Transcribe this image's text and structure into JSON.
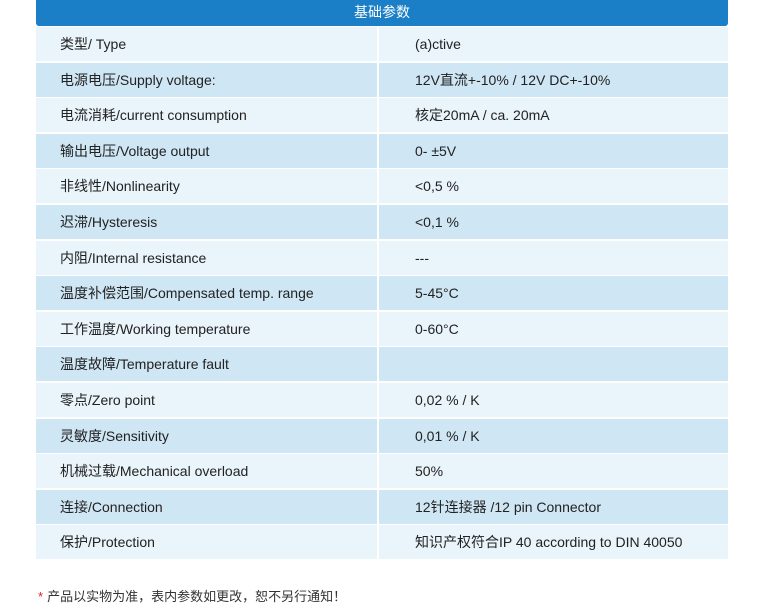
{
  "header": {
    "title": "基础参数"
  },
  "rows": [
    {
      "key": "类型/ Type",
      "value": "(a)ctive"
    },
    {
      "key": "电源电压/Supply voltage:",
      "value": "12V直流+-10%  / 12V DC+-10%"
    },
    {
      "key": "电流消耗/current consumption",
      "value": "核定20mA   / ca. 20mA"
    },
    {
      "key": "输出电压/Voltage output",
      "value": "0- ±5V"
    },
    {
      "key": "非线性/Nonlinearity",
      "value": "<0,5 %"
    },
    {
      "key": "迟滞/Hysteresis",
      "value": "<0,1 %"
    },
    {
      "key": "内阻/Internal resistance",
      "value": "---"
    },
    {
      "key": "温度补偿范围/Compensated temp. range",
      "value": "5-45°C"
    },
    {
      "key": "工作温度/Working temperature",
      "value": "0-60°C"
    },
    {
      "key": "温度故障/Temperature fault",
      "value": ""
    },
    {
      "key": "零点/Zero point",
      "value": "0,02 % / K"
    },
    {
      "key": "灵敏度/Sensitivity",
      "value": "0,01 % / K"
    },
    {
      "key": "机械过载/Mechanical overload",
      "value": "50%"
    },
    {
      "key": "连接/Connection",
      "value": "12针连接器  /12 pin Connector"
    },
    {
      "key": "保护/Protection",
      "value": "知识产权符合IP 40 according to DIN 40050"
    }
  ],
  "footnote": {
    "star": "*",
    "text": "产品以实物为准，表内参数如更改，恕不另行通知！"
  },
  "colors": {
    "header": "#1a7fc6",
    "row_light": "#e9f4fb",
    "row_dark": "#cfe6f4"
  }
}
